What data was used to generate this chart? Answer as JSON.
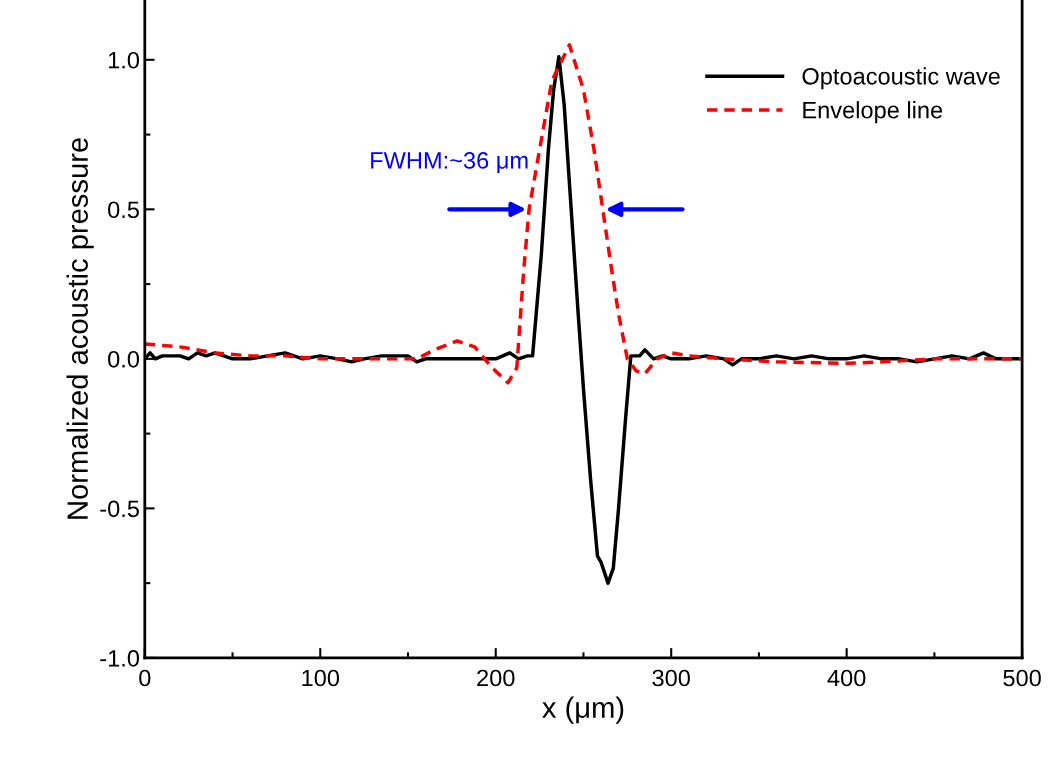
{
  "chart_data": {
    "type": "line",
    "xlabel": "x (μm)",
    "ylabel": "Normalized acoustic pressure",
    "xlim": [
      0,
      500
    ],
    "xticks": [
      0,
      100,
      200,
      300,
      400,
      500
    ],
    "ylim": [
      -1.0,
      1.2
    ],
    "yticks": [
      {
        "value": -1.0,
        "label": "-1.0"
      },
      {
        "value": -0.5,
        "label": "-0.5"
      },
      {
        "value": 0.0,
        "label": "0.0"
      },
      {
        "value": 0.5,
        "label": "0.5"
      },
      {
        "value": 1.0,
        "label": "1.0"
      }
    ],
    "grid": false,
    "legend": "top right",
    "annotations": [
      {
        "text": "FWHM:~36 μm",
        "x": 219,
        "y": 0.5
      }
    ],
    "series": [
      {
        "name": "Optoacoustic wave",
        "color": "#000000",
        "line_style": "solid",
        "x": [
          0,
          3,
          6,
          10,
          20,
          25,
          30,
          35,
          40,
          45,
          50,
          60,
          70,
          80,
          90,
          100,
          110,
          118,
          125,
          135,
          150,
          155,
          160,
          175,
          190,
          200,
          208,
          213,
          218,
          221,
          226,
          230,
          233,
          236,
          239,
          243,
          247,
          250,
          254,
          258,
          260,
          264,
          267,
          270,
          274,
          277,
          282,
          285,
          290,
          295,
          300,
          310,
          320,
          330,
          335,
          340,
          350,
          360,
          370,
          380,
          390,
          400,
          410,
          420,
          430,
          440,
          450,
          460,
          470,
          478,
          485,
          500
        ],
        "values": [
          0.0,
          0.02,
          0.0,
          0.01,
          0.01,
          0.0,
          0.02,
          0.01,
          0.02,
          0.01,
          0.0,
          0.0,
          0.01,
          0.02,
          0.0,
          0.01,
          0.0,
          -0.01,
          0.0,
          0.01,
          0.01,
          -0.01,
          0.0,
          0.0,
          0.0,
          0.0,
          0.02,
          0.0,
          0.01,
          0.01,
          0.35,
          0.7,
          0.9,
          1.01,
          0.85,
          0.5,
          0.15,
          -0.1,
          -0.4,
          -0.66,
          -0.68,
          -0.75,
          -0.7,
          -0.5,
          -0.2,
          0.01,
          0.01,
          0.03,
          0.0,
          0.01,
          0.0,
          0.0,
          0.01,
          0.0,
          -0.02,
          0.0,
          0.0,
          0.01,
          0.0,
          0.01,
          0.0,
          0.0,
          0.01,
          0.0,
          0.0,
          -0.01,
          0.0,
          0.01,
          0.0,
          0.02,
          0.0,
          0.0
        ]
      },
      {
        "name": "Envelope line",
        "color": "#ff0000",
        "line_style": "dashed",
        "x": [
          0,
          20,
          40,
          60,
          80,
          100,
          120,
          140,
          155,
          165,
          178,
          188,
          198,
          207,
          212,
          216,
          219,
          225,
          232,
          242,
          250,
          256,
          261,
          266,
          270,
          275,
          280,
          285,
          292,
          300,
          310,
          330,
          360,
          400,
          420,
          450,
          500
        ],
        "values": [
          0.05,
          0.04,
          0.02,
          0.01,
          0.01,
          0.0,
          0.0,
          0.0,
          0.0,
          0.03,
          0.06,
          0.04,
          -0.03,
          -0.08,
          -0.03,
          0.3,
          0.5,
          0.7,
          0.93,
          1.05,
          0.9,
          0.7,
          0.5,
          0.3,
          0.15,
          0.0,
          -0.04,
          -0.05,
          0.0,
          0.02,
          0.01,
          0.0,
          -0.01,
          -0.015,
          -0.01,
          0.0,
          0.0
        ]
      }
    ]
  }
}
